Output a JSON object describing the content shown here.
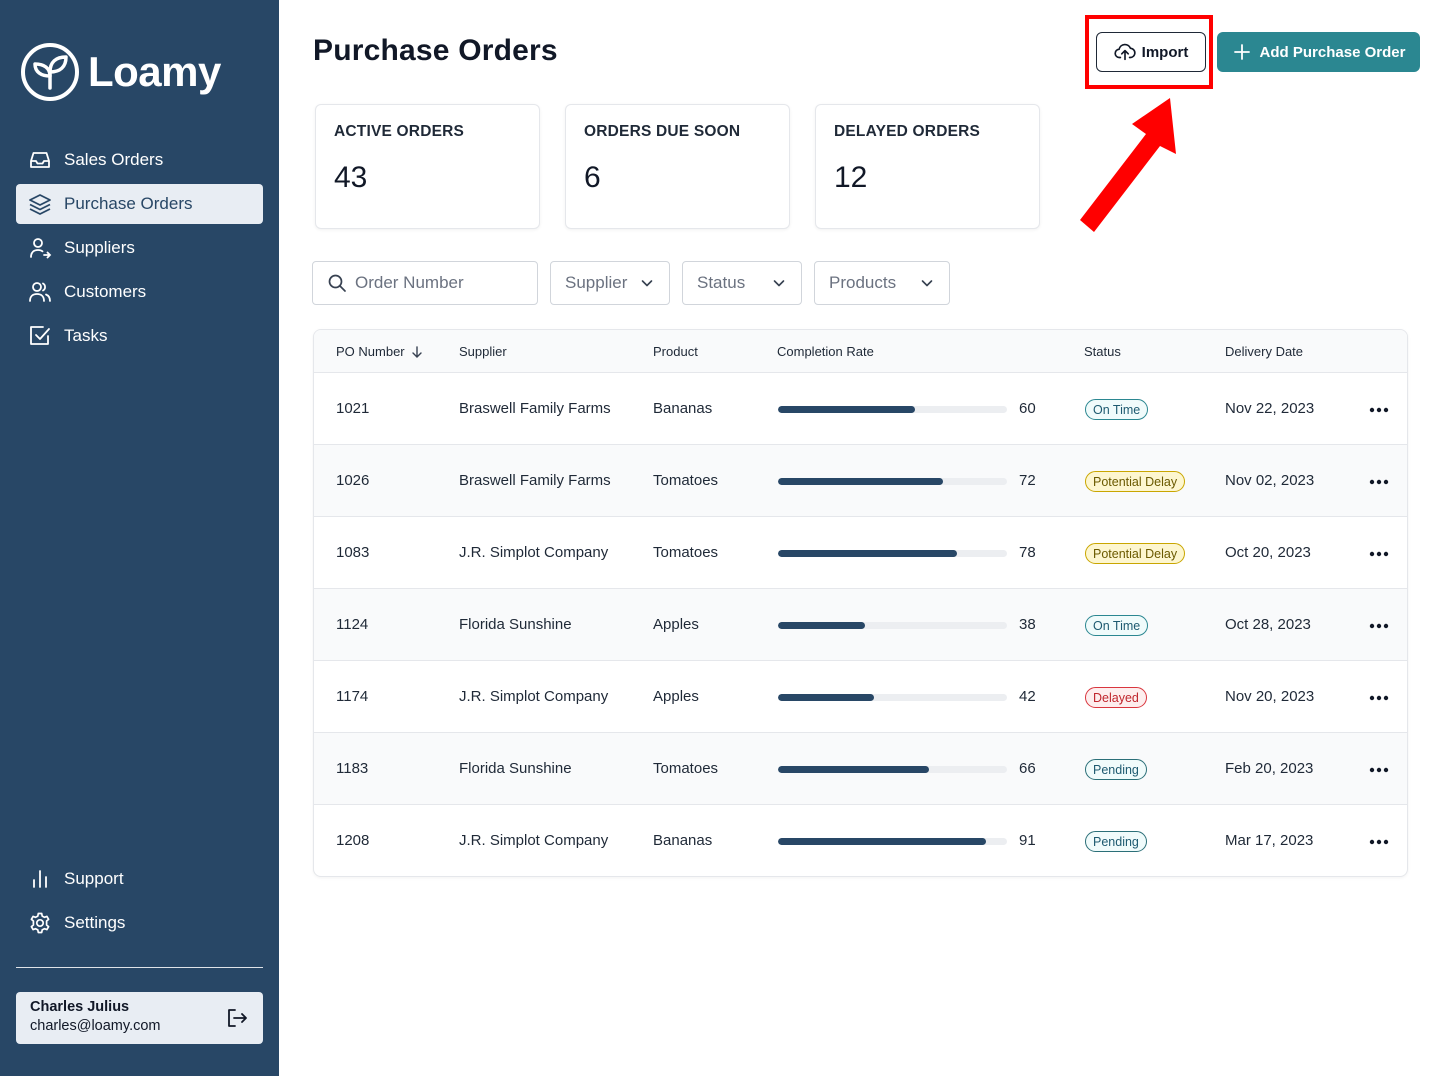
{
  "app": {
    "brand": "Loamy"
  },
  "sidebar": {
    "items": [
      {
        "label": "Sales Orders",
        "icon": "inbox-icon",
        "active": false
      },
      {
        "label": "Purchase Orders",
        "icon": "layers-icon",
        "active": true
      },
      {
        "label": "Suppliers",
        "icon": "user-arrow-icon",
        "active": false
      },
      {
        "label": "Customers",
        "icon": "users-icon",
        "active": false
      },
      {
        "label": "Tasks",
        "icon": "checkbox-icon",
        "active": false
      }
    ],
    "bottom_items": [
      {
        "label": "Support",
        "icon": "bar-chart-icon"
      },
      {
        "label": "Settings",
        "icon": "gear-icon"
      }
    ],
    "user": {
      "name": "Charles Julius",
      "email": "charles@loamy.com"
    }
  },
  "header": {
    "title": "Purchase Orders",
    "import_label": "Import",
    "add_label": "Add Purchase Order"
  },
  "stats": [
    {
      "label": "ACTIVE ORDERS",
      "value": "43"
    },
    {
      "label": "ORDERS DUE SOON",
      "value": "6"
    },
    {
      "label": "DELAYED ORDERS",
      "value": "12"
    }
  ],
  "filters": {
    "search_placeholder": "Order Number",
    "supplier": "Supplier",
    "status": "Status",
    "products": "Products"
  },
  "table": {
    "columns": {
      "po_number": "PO Number",
      "supplier": "Supplier",
      "product": "Product",
      "completion": "Completion Rate",
      "status": "Status",
      "delivery": "Delivery Date"
    },
    "rows": [
      {
        "po": "1021",
        "supplier": "Braswell Family Farms",
        "product": "Bananas",
        "completion": 60,
        "completion_label": "60",
        "status": "On Time",
        "status_kind": "ontime",
        "delivery": "Nov 22, 2023"
      },
      {
        "po": "1026",
        "supplier": "Braswell Family Farms",
        "product": "Tomatoes",
        "completion": 72,
        "completion_label": "72",
        "status": "Potential Delay",
        "status_kind": "potential",
        "delivery": "Nov 02, 2023"
      },
      {
        "po": "1083",
        "supplier": "J.R. Simplot Company",
        "product": "Tomatoes",
        "completion": 78,
        "completion_label": "78",
        "status": "Potential Delay",
        "status_kind": "potential",
        "delivery": "Oct 20, 2023"
      },
      {
        "po": "1124",
        "supplier": "Florida Sunshine",
        "product": "Apples",
        "completion": 38,
        "completion_label": "38",
        "status": "On Time",
        "status_kind": "ontime",
        "delivery": "Oct 28, 2023"
      },
      {
        "po": "1174",
        "supplier": "J.R. Simplot Company",
        "product": "Apples",
        "completion": 42,
        "completion_label": "42",
        "status": "Delayed",
        "status_kind": "delayed",
        "delivery": "Nov 20, 2023"
      },
      {
        "po": "1183",
        "supplier": "Florida Sunshine",
        "product": "Tomatoes",
        "completion": 66,
        "completion_label": "66",
        "status": "Pending",
        "status_kind": "pending",
        "delivery": "Feb 20, 2023"
      },
      {
        "po": "1208",
        "supplier": "J.R. Simplot Company",
        "product": "Bananas",
        "completion": 91,
        "completion_label": "91",
        "status": "Pending",
        "status_kind": "pending",
        "delivery": "Mar 17, 2023"
      }
    ]
  },
  "colors": {
    "sidebar": "#284766",
    "accent": "#2b8791",
    "highlight": "#ff0000"
  }
}
